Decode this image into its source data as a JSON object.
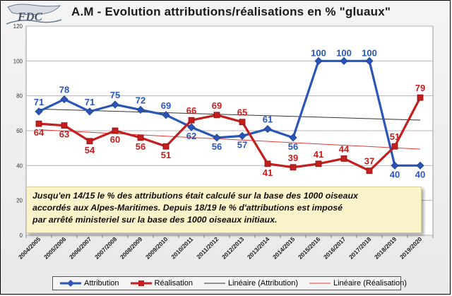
{
  "header": {
    "title": "A.M - Evolution attributions/réalisations en % \"gluaux\"",
    "logo_text": "FDC"
  },
  "note": {
    "line1": "Jusqu'en 14/15 le % des attributions était calculé sur la base des 1000 oiseaux",
    "line2": "accordés aux Alpes-Maritimes. Depuis 18/19 le % d'attributions est imposé",
    "line3": "par arrêté ministeriel sur la base des 1000 oiseaux initiaux."
  },
  "chart_data": {
    "type": "line",
    "title": "A.M - Evolution attributions/réalisations en % \"gluaux\"",
    "categories": [
      "2004/2005",
      "2005/2006",
      "2006/2007",
      "2007/2008",
      "2008/2009",
      "2009/2010",
      "2010/2011",
      "2011/2012",
      "2012/2013",
      "2013/2014",
      "2014/2015",
      "2015/2016",
      "2016/2017",
      "2017/2018",
      "2018/2019",
      "2019/2020"
    ],
    "ylim": [
      0,
      120
    ],
    "yticks": [
      0,
      20,
      40,
      60,
      80,
      100,
      120
    ],
    "grid": true,
    "series": [
      {
        "name": "Attribution",
        "color": "#2a56b8",
        "marker": "diamond",
        "values": [
          71,
          78,
          71,
          75,
          72,
          69,
          62,
          56,
          57,
          61,
          56,
          100,
          100,
          100,
          40,
          40
        ]
      },
      {
        "name": "Réalisation",
        "color": "#c41e1e",
        "marker": "square",
        "values": [
          64,
          63,
          54,
          60,
          56,
          51,
          66,
          69,
          65,
          41,
          39,
          41,
          44,
          37,
          51,
          79
        ]
      }
    ],
    "trendlines": [
      {
        "name": "Linéaire (Attribution)",
        "color": "#333333"
      },
      {
        "name": "Linéaire (Réalisation)",
        "color": "#e03a3a"
      }
    ],
    "legend_position": "bottom"
  }
}
